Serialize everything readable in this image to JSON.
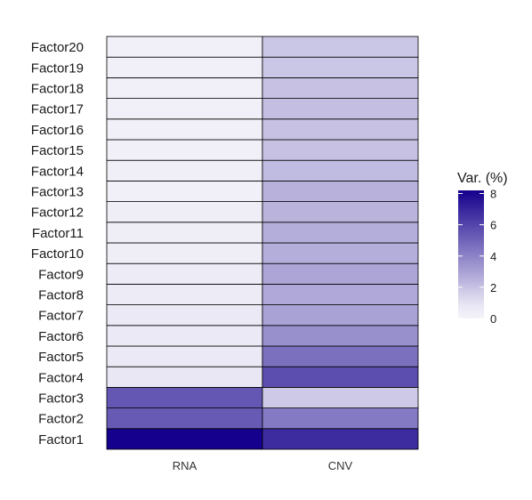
{
  "chart_data": {
    "type": "heatmap",
    "title": "",
    "xlabel": "",
    "ylabel": "",
    "columns": [
      "RNA",
      "CNV"
    ],
    "rows": [
      "Factor1",
      "Factor2",
      "Factor3",
      "Factor4",
      "Factor5",
      "Factor6",
      "Factor7",
      "Factor8",
      "Factor9",
      "Factor10",
      "Factor11",
      "Factor12",
      "Factor13",
      "Factor14",
      "Factor15",
      "Factor16",
      "Factor17",
      "Factor18",
      "Factor19",
      "Factor20"
    ],
    "values": [
      [
        8.2,
        6.8
      ],
      [
        5.3,
        4.3
      ],
      [
        5.4,
        1.8
      ],
      [
        0.8,
        5.7
      ],
      [
        0.7,
        4.6
      ],
      [
        0.7,
        3.6
      ],
      [
        0.7,
        3.0
      ],
      [
        0.6,
        2.8
      ],
      [
        0.6,
        2.9
      ],
      [
        0.5,
        2.6
      ],
      [
        0.5,
        2.6
      ],
      [
        0.5,
        2.4
      ],
      [
        0.3,
        2.5
      ],
      [
        0.4,
        2.2
      ],
      [
        0.3,
        2.0
      ],
      [
        0.3,
        2.0
      ],
      [
        0.3,
        2.1
      ],
      [
        0.3,
        2.0
      ],
      [
        0.3,
        1.9
      ],
      [
        0.3,
        1.9
      ]
    ],
    "color_scale": {
      "low": "#ffffff",
      "high": "#14008c",
      "min": 0,
      "max": 8.2
    },
    "legend": {
      "title": "Var. (%)",
      "ticks": [
        0,
        2,
        4,
        6,
        8
      ],
      "placement": "right"
    },
    "grid": false
  }
}
